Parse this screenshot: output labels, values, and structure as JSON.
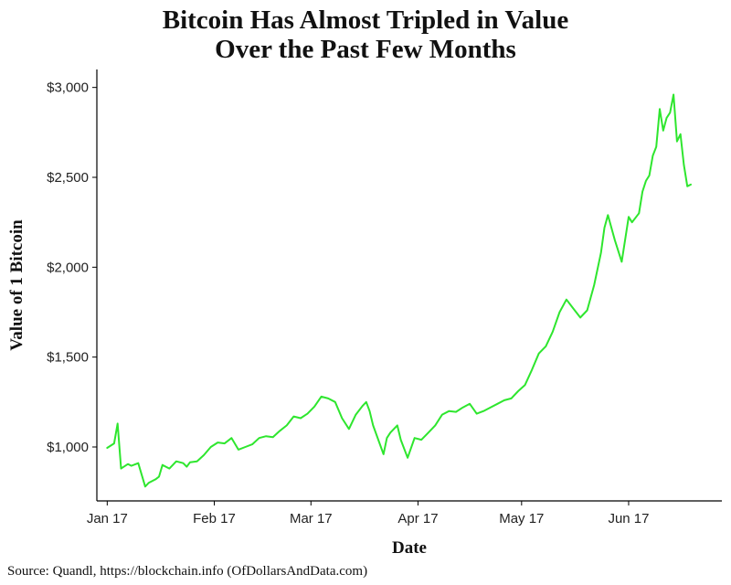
{
  "title_line1": "Bitcoin Has Almost Tripled in Value",
  "title_line2": "Over the Past Few Months",
  "source": "Source:  Quandl, https://blockchain.info (OfDollarsAndData.com)",
  "chart_data": {
    "type": "line",
    "title": "Bitcoin Has Almost Tripled in Value Over the Past Few Months",
    "xlabel": "Date",
    "ylabel": "Value of 1 Bitcoin",
    "x_ticks": [
      "Jan 17",
      "Feb 17",
      "Mar 17",
      "Apr 17",
      "May 17",
      "Jun 17"
    ],
    "y_ticks": [
      "$1,000",
      "$1,500",
      "$2,000",
      "$2,500",
      "$3,000"
    ],
    "y_tick_values": [
      1000,
      1500,
      2000,
      2500,
      3000
    ],
    "ylim": [
      700,
      3100
    ],
    "xlim": [
      "2016-12-29",
      "2017-06-28"
    ],
    "grid": false,
    "line_color": "#2ee62e",
    "series": [
      {
        "x": [
          "2017-01-01",
          "2017-01-03",
          "2017-01-04",
          "2017-01-05",
          "2017-01-07",
          "2017-01-08",
          "2017-01-10",
          "2017-01-12",
          "2017-01-13",
          "2017-01-15",
          "2017-01-16",
          "2017-01-17",
          "2017-01-19",
          "2017-01-21",
          "2017-01-23",
          "2017-01-24",
          "2017-01-25",
          "2017-01-27",
          "2017-01-29",
          "2017-01-31",
          "2017-02-02",
          "2017-02-04",
          "2017-02-06",
          "2017-02-08",
          "2017-02-10",
          "2017-02-12",
          "2017-02-14",
          "2017-02-16",
          "2017-02-18",
          "2017-02-20",
          "2017-02-22",
          "2017-02-24",
          "2017-02-26",
          "2017-02-28",
          "2017-03-02",
          "2017-03-04",
          "2017-03-06",
          "2017-03-08",
          "2017-03-10",
          "2017-03-12",
          "2017-03-14",
          "2017-03-16",
          "2017-03-17",
          "2017-03-18",
          "2017-03-19",
          "2017-03-22",
          "2017-03-23",
          "2017-03-24",
          "2017-03-26",
          "2017-03-27",
          "2017-03-29",
          "2017-03-31",
          "2017-04-02",
          "2017-04-04",
          "2017-04-06",
          "2017-04-08",
          "2017-04-10",
          "2017-04-12",
          "2017-04-14",
          "2017-04-16",
          "2017-04-18",
          "2017-04-20",
          "2017-04-22",
          "2017-04-24",
          "2017-04-26",
          "2017-04-28",
          "2017-04-30",
          "2017-05-02",
          "2017-05-04",
          "2017-05-06",
          "2017-05-08",
          "2017-05-10",
          "2017-05-12",
          "2017-05-14",
          "2017-05-16",
          "2017-05-18",
          "2017-05-20",
          "2017-05-22",
          "2017-05-24",
          "2017-05-25",
          "2017-05-26",
          "2017-05-28",
          "2017-05-30",
          "2017-06-01",
          "2017-06-02",
          "2017-06-04",
          "2017-06-05",
          "2017-06-06",
          "2017-06-07",
          "2017-06-08",
          "2017-06-09",
          "2017-06-10",
          "2017-06-11",
          "2017-06-12",
          "2017-06-13",
          "2017-06-14",
          "2017-06-15",
          "2017-06-16",
          "2017-06-17",
          "2017-06-18",
          "2017-06-19"
        ],
        "values": [
          995,
          1020,
          1130,
          880,
          905,
          895,
          910,
          780,
          800,
          820,
          835,
          900,
          880,
          920,
          910,
          890,
          915,
          920,
          955,
          1000,
          1025,
          1020,
          1050,
          985,
          1000,
          1015,
          1050,
          1060,
          1055,
          1090,
          1120,
          1170,
          1160,
          1185,
          1225,
          1280,
          1270,
          1250,
          1160,
          1100,
          1180,
          1230,
          1250,
          1200,
          1120,
          960,
          1050,
          1080,
          1120,
          1040,
          940,
          1050,
          1040,
          1080,
          1120,
          1180,
          1200,
          1195,
          1220,
          1240,
          1185,
          1200,
          1220,
          1240,
          1260,
          1270,
          1310,
          1345,
          1430,
          1520,
          1560,
          1640,
          1750,
          1820,
          1770,
          1720,
          1760,
          1900,
          2080,
          2220,
          2290,
          2150,
          2030,
          2280,
          2250,
          2300,
          2420,
          2480,
          2510,
          2620,
          2670,
          2880,
          2760,
          2830,
          2860,
          2960,
          2700,
          2740,
          2570,
          2450,
          2460
        ]
      }
    ]
  }
}
